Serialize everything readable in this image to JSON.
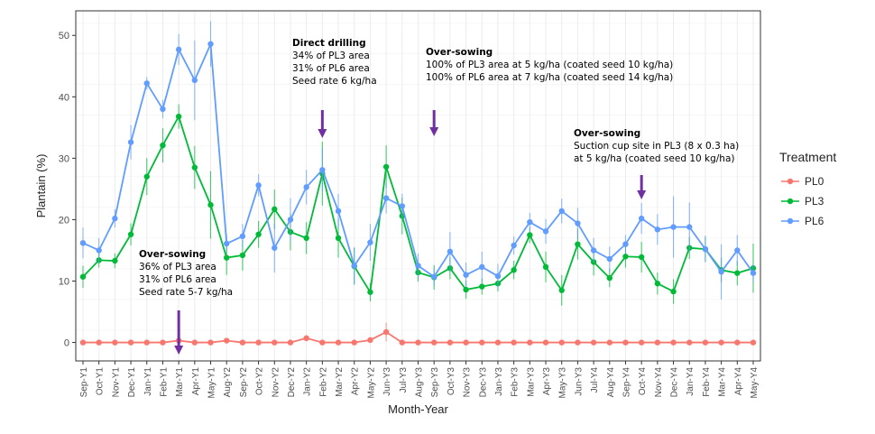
{
  "chart_data": {
    "type": "line",
    "title": "",
    "xlabel": "Month-Year",
    "ylabel": "Plantain (%)",
    "ylim": [
      -3,
      54
    ],
    "yticks": [
      0,
      10,
      20,
      30,
      40,
      50
    ],
    "grid": true,
    "legend_position": "right",
    "legend_title": "Treatment",
    "categories": [
      "Sep-Y1",
      "Oct-Y1",
      "Nov-Y1",
      "Dec-Y1",
      "Jan-Y1",
      "Feb-Y1",
      "Mar-Y1",
      "Apr-Y1",
      "May-Y1",
      "Aug-Y2",
      "Sep-Y2",
      "Oct-Y2",
      "Nov-Y2",
      "Dec-Y2",
      "Jan-Y2",
      "Feb-Y2",
      "Mar-Y2",
      "Apr-Y2",
      "May-Y2",
      "Jun-Y3",
      "Jul-Y3",
      "Aug-Y3",
      "Sep-Y3",
      "Oct-Y3",
      "Nov-Y3",
      "Dec-Y3",
      "Jan-Y3",
      "Feb-Y3",
      "Mar-Y3",
      "Apr-Y3",
      "May-Y3",
      "Jun-Y3",
      "Jul-Y4",
      "Aug-Y4",
      "Sep-Y4",
      "Oct-Y4",
      "Nov-Y4",
      "Dec-Y4",
      "Jan-Y4",
      "Feb-Y4",
      "Mar-Y4",
      "Apr-Y4",
      "May-Y4"
    ],
    "series": [
      {
        "name": "PL0",
        "color": "#F8766D",
        "values": [
          0,
          0,
          0,
          0,
          0,
          0,
          0.3,
          0,
          0,
          0.3,
          0,
          0,
          0,
          0,
          0.7,
          0,
          0,
          0,
          0.4,
          1.7,
          0,
          0,
          0,
          0,
          0,
          0,
          0,
          0,
          0,
          0,
          0,
          0,
          0,
          0,
          0,
          0,
          0,
          0,
          0,
          0,
          0,
          0,
          0
        ],
        "err": [
          0,
          0,
          0,
          0,
          0,
          0,
          0.3,
          0,
          0,
          0.2,
          0,
          0,
          0,
          0,
          0.5,
          0,
          0,
          0,
          0.3,
          1.5,
          0,
          0,
          0,
          0,
          0,
          0,
          0,
          0,
          0,
          0,
          0,
          0,
          0,
          0,
          0,
          0,
          0,
          0,
          0,
          0,
          0,
          0,
          0
        ]
      },
      {
        "name": "PL3",
        "color": "#00BA38",
        "values": [
          10.7,
          13.4,
          13.3,
          17.6,
          27.0,
          32.1,
          36.8,
          28.5,
          22.4,
          13.8,
          14.2,
          17.6,
          21.7,
          18.0,
          17.0,
          27.5,
          17.0,
          12.4,
          8.2,
          28.6,
          20.6,
          11.4,
          10.6,
          12.1,
          8.6,
          9.1,
          9.6,
          11.8,
          17.5,
          12.3,
          8.5,
          16.0,
          13.1,
          10.5,
          14.0,
          13.9,
          9.6,
          8.3,
          15.4,
          15.2,
          11.8,
          11.3,
          12.1
        ],
        "err": [
          1.8,
          1.2,
          1.2,
          1.8,
          3.0,
          2.8,
          2.0,
          3.5,
          5.5,
          2.8,
          2.5,
          2.2,
          3.2,
          3.0,
          2.6,
          5.2,
          3.2,
          3.0,
          1.5,
          3.5,
          3.0,
          1.5,
          2.0,
          1.8,
          1.5,
          1.3,
          1.3,
          1.5,
          1.3,
          2.5,
          2.5,
          2.5,
          2.2,
          1.5,
          1.8,
          2.5,
          1.8,
          2.0,
          1.8,
          2.0,
          2.0,
          2.0,
          4.0
        ]
      },
      {
        "name": "PL6",
        "color": "#619CFF",
        "values": [
          16.2,
          15.0,
          20.2,
          32.6,
          42.2,
          38.0,
          47.7,
          42.7,
          48.6,
          16.1,
          17.3,
          25.6,
          15.4,
          20.0,
          25.3,
          28.1,
          21.4,
          12.5,
          16.3,
          23.5,
          22.2,
          12.5,
          10.7,
          14.8,
          11.0,
          12.3,
          10.8,
          15.8,
          19.6,
          18.1,
          21.4,
          19.4,
          15.0,
          13.6,
          16.0,
          20.2,
          18.4,
          18.8,
          18.8,
          15.2,
          11.5,
          15.0,
          11.3
        ],
        "err": [
          2.5,
          2.0,
          1.5,
          2.8,
          1.0,
          1.5,
          2.5,
          6.5,
          3.7,
          1.5,
          2.0,
          1.8,
          4.0,
          3.5,
          2.8,
          3.5,
          2.8,
          3.0,
          3.0,
          2.5,
          2.0,
          2.0,
          1.5,
          3.2,
          2.0,
          2.5,
          2.0,
          1.5,
          1.5,
          2.0,
          2.0,
          2.5,
          2.0,
          2.0,
          1.5,
          2.5,
          2.5,
          5.0,
          4.0,
          2.2,
          4.5,
          2.5,
          1.5
        ]
      }
    ],
    "annotations": [
      {
        "heading": "Over-sowing",
        "lines": [
          "36% of PL3 area",
          "31% of PL6 area",
          "Seed rate 5-7 kg/ha"
        ],
        "arrow_at": "Mar-Y1"
      },
      {
        "heading": "Direct drilling",
        "lines": [
          "34% of PL3 area",
          "31% of PL6 area",
          "Seed rate 6 kg/ha"
        ],
        "arrow_at": "Feb-Y2"
      },
      {
        "heading": "Over-sowing",
        "lines": [
          "100% of PL3 area at 5 kg/ha (coated seed 10 kg/ha)",
          "100% of PL6 area at 7 kg/ha (coated seed 14 kg/ha)"
        ],
        "arrow_at": "Sep-Y3"
      },
      {
        "heading": "Over-sowing",
        "lines": [
          "Suction cup site in PL3 (8 x 0.3 ha)",
          "at 5 kg/ha (coated seed 10 kg/ha)"
        ],
        "arrow_at": "Oct-Y4"
      }
    ],
    "arrow_color": "#7030A0"
  }
}
